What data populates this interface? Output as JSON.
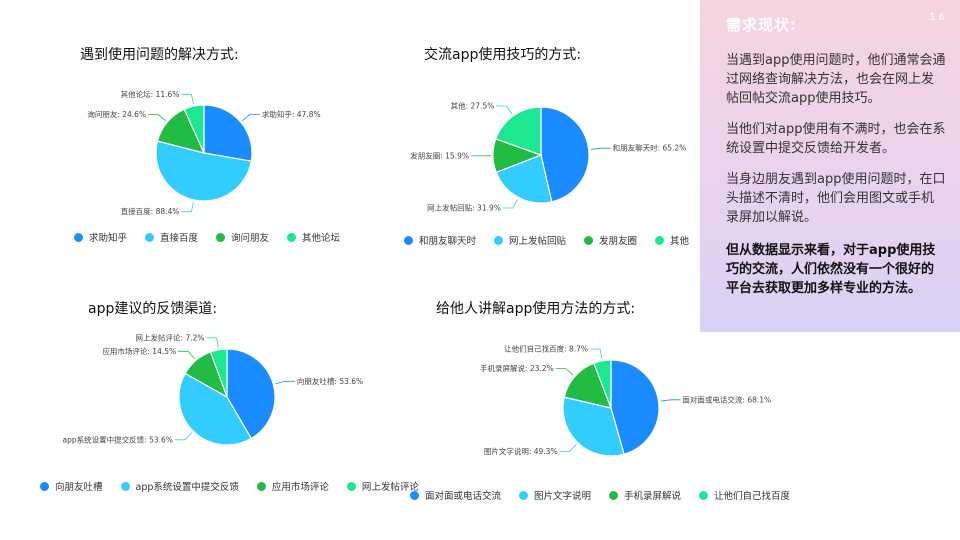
{
  "side_panel": {
    "title": "需求现状:",
    "page_number": "16",
    "paragraphs": [
      "当遇到app使用问题时，他们通常会通过网络查询解决方法，也会在网上发帖回帖交流app使用技巧。",
      "当他们对app使用有不满时，也会在系统设置中提交反馈给开发者。",
      "当身边朋友遇到app使用问题时，在口头描述不清时，他们会用图文或手机录屏加以解说。"
    ],
    "conclusion": "但从数据显示来看，对于app使用技巧的交流，人们依然没有一个很好的平台去获取更加多样专业的方法。"
  },
  "colors": [
    "#1a8cff",
    "#33ccff",
    "#22bb44",
    "#1ee88f"
  ],
  "chart_data": [
    {
      "type": "pie",
      "title": "遇到使用问题的解决方式:",
      "categories": [
        "求助知乎",
        "直接百度",
        "询问朋友",
        "其他论坛"
      ],
      "values": [
        47.8,
        88.4,
        24.6,
        11.6
      ],
      "labels": [
        "求助知乎: 47.8%",
        "直接百度: 88.4%",
        "询问朋友: 24.6%",
        "其他论坛: 11.6%"
      ]
    },
    {
      "type": "pie",
      "title": "交流app使用技巧的方式:",
      "categories": [
        "和朋友聊天时",
        "网上发帖回贴",
        "发朋友圈",
        "其他"
      ],
      "values": [
        65.2,
        31.9,
        15.9,
        27.5
      ],
      "labels": [
        "和朋友聊天时: 65.2%",
        "网上发帖回贴: 31.9%",
        "发朋友圈: 15.9%",
        "其他: 27.5%"
      ]
    },
    {
      "type": "pie",
      "title": "app建议的反馈渠道:",
      "categories": [
        "向朋友吐槽",
        "app系统设置中提交反馈",
        "应用市场评论",
        "网上发帖评论"
      ],
      "values": [
        53.6,
        53.6,
        14.5,
        7.2
      ],
      "labels": [
        "向朋友吐槽: 53.6%",
        "app系统设置中提交反馈: 53.6%",
        "应用市场评论: 14.5%",
        "网上发帖评论: 7.2%"
      ]
    },
    {
      "type": "pie",
      "title": "给他人讲解app使用方法的方式:",
      "categories": [
        "面对面或电话交流",
        "图片文字说明",
        "手机录屏解说",
        "让他们自己找百度"
      ],
      "values": [
        68.1,
        49.3,
        23.2,
        8.7
      ],
      "labels": [
        "面对面或电话交流: 68.1%",
        "图片文字说明: 49.3%",
        "手机录屏解说: 23.2%",
        "让他们自己找百度: 8.7%"
      ]
    }
  ]
}
